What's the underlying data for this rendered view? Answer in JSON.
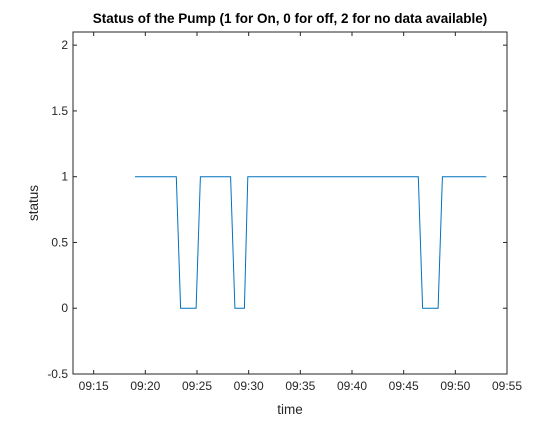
{
  "chart_data": {
    "type": "line",
    "title": "Status of the Pump (1 for On, 0 for off, 2 for no data available)",
    "xlabel": "time",
    "ylabel": "status",
    "xlim": [
      "09:13",
      "09:55"
    ],
    "ylim": [
      -0.5,
      2.1
    ],
    "xticks": [
      "09:15",
      "09:20",
      "09:25",
      "09:30",
      "09:35",
      "09:40",
      "09:45",
      "09:50",
      "09:55"
    ],
    "yticks": [
      -0.5,
      0,
      0.5,
      1,
      1.5,
      2
    ],
    "ytick_labels": [
      "-0.5",
      "0",
      "0.5",
      "1",
      "1.5",
      "2"
    ],
    "grid": false,
    "line_color": "#0072BD",
    "series": [
      {
        "x": [
          "09:19:00",
          "09:23:00",
          "09:23:25",
          "09:24:55",
          "09:25:20",
          "09:28:15",
          "09:28:40",
          "09:29:35",
          "09:29:55",
          "09:46:25",
          "09:46:50",
          "09:48:20",
          "09:48:45",
          "09:53:00"
        ],
        "y": [
          1,
          1,
          0,
          0,
          1,
          1,
          0,
          0,
          1,
          1,
          0,
          0,
          1,
          1
        ]
      }
    ]
  }
}
